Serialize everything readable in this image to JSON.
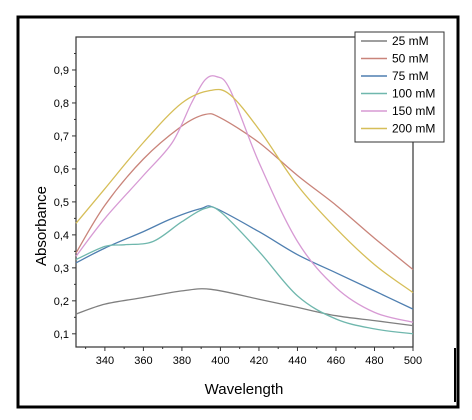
{
  "chart_data": {
    "type": "line",
    "title": "",
    "xlabel": "Wavelength",
    "ylabel": "Absorbance",
    "xlim": [
      325,
      500
    ],
    "ylim": [
      0.06,
      1.0
    ],
    "xticks": [
      340,
      360,
      380,
      400,
      420,
      440,
      460,
      480,
      500
    ],
    "yticks": [
      0.1,
      0.2,
      0.3,
      0.4,
      0.5,
      0.6,
      0.7,
      0.8,
      0.9
    ],
    "xtick_labels": [
      "340",
      "360",
      "380",
      "400",
      "420",
      "440",
      "460",
      "480",
      "500"
    ],
    "ytick_labels": [
      "0,1",
      "0,2",
      "0,3",
      "0,4",
      "0,5",
      "0,6",
      "0,7",
      "0,8",
      "0,9"
    ],
    "grid": false,
    "legend_position": "top-right",
    "series": [
      {
        "name": "25 mM",
        "color": "#7f7f7f",
        "x": [
          325,
          340,
          360,
          380,
          395,
          420,
          440,
          460,
          480,
          500
        ],
        "y": [
          0.16,
          0.19,
          0.21,
          0.23,
          0.235,
          0.205,
          0.18,
          0.155,
          0.14,
          0.125
        ]
      },
      {
        "name": "50 mM",
        "color": "#c9847a",
        "x": [
          325,
          340,
          360,
          380,
          392,
          400,
          420,
          440,
          460,
          480,
          500
        ],
        "y": [
          0.345,
          0.49,
          0.63,
          0.73,
          0.765,
          0.755,
          0.68,
          0.58,
          0.49,
          0.39,
          0.295
        ]
      },
      {
        "name": "75 mM",
        "color": "#4f7fb0",
        "x": [
          325,
          340,
          360,
          375,
          390,
          397,
          420,
          440,
          460,
          480,
          500
        ],
        "y": [
          0.315,
          0.36,
          0.41,
          0.45,
          0.48,
          0.482,
          0.41,
          0.34,
          0.285,
          0.23,
          0.175
        ]
      },
      {
        "name": "100 mM",
        "color": "#6fb7ad",
        "x": [
          325,
          340,
          350,
          365,
          380,
          392,
          400,
          420,
          440,
          460,
          480,
          500
        ],
        "y": [
          0.325,
          0.365,
          0.37,
          0.38,
          0.44,
          0.48,
          0.47,
          0.35,
          0.215,
          0.145,
          0.115,
          0.1
        ]
      },
      {
        "name": "150 mM",
        "color": "#d79ad4",
        "x": [
          325,
          340,
          360,
          375,
          385,
          392,
          398,
          405,
          420,
          440,
          460,
          480,
          500
        ],
        "y": [
          0.335,
          0.45,
          0.58,
          0.68,
          0.8,
          0.87,
          0.88,
          0.84,
          0.62,
          0.38,
          0.24,
          0.165,
          0.135
        ]
      },
      {
        "name": "200 mM",
        "color": "#d6be58",
        "x": [
          325,
          340,
          360,
          380,
          395,
          405,
          420,
          440,
          460,
          480,
          500
        ],
        "y": [
          0.435,
          0.54,
          0.68,
          0.8,
          0.838,
          0.825,
          0.72,
          0.55,
          0.42,
          0.31,
          0.225
        ]
      }
    ]
  }
}
